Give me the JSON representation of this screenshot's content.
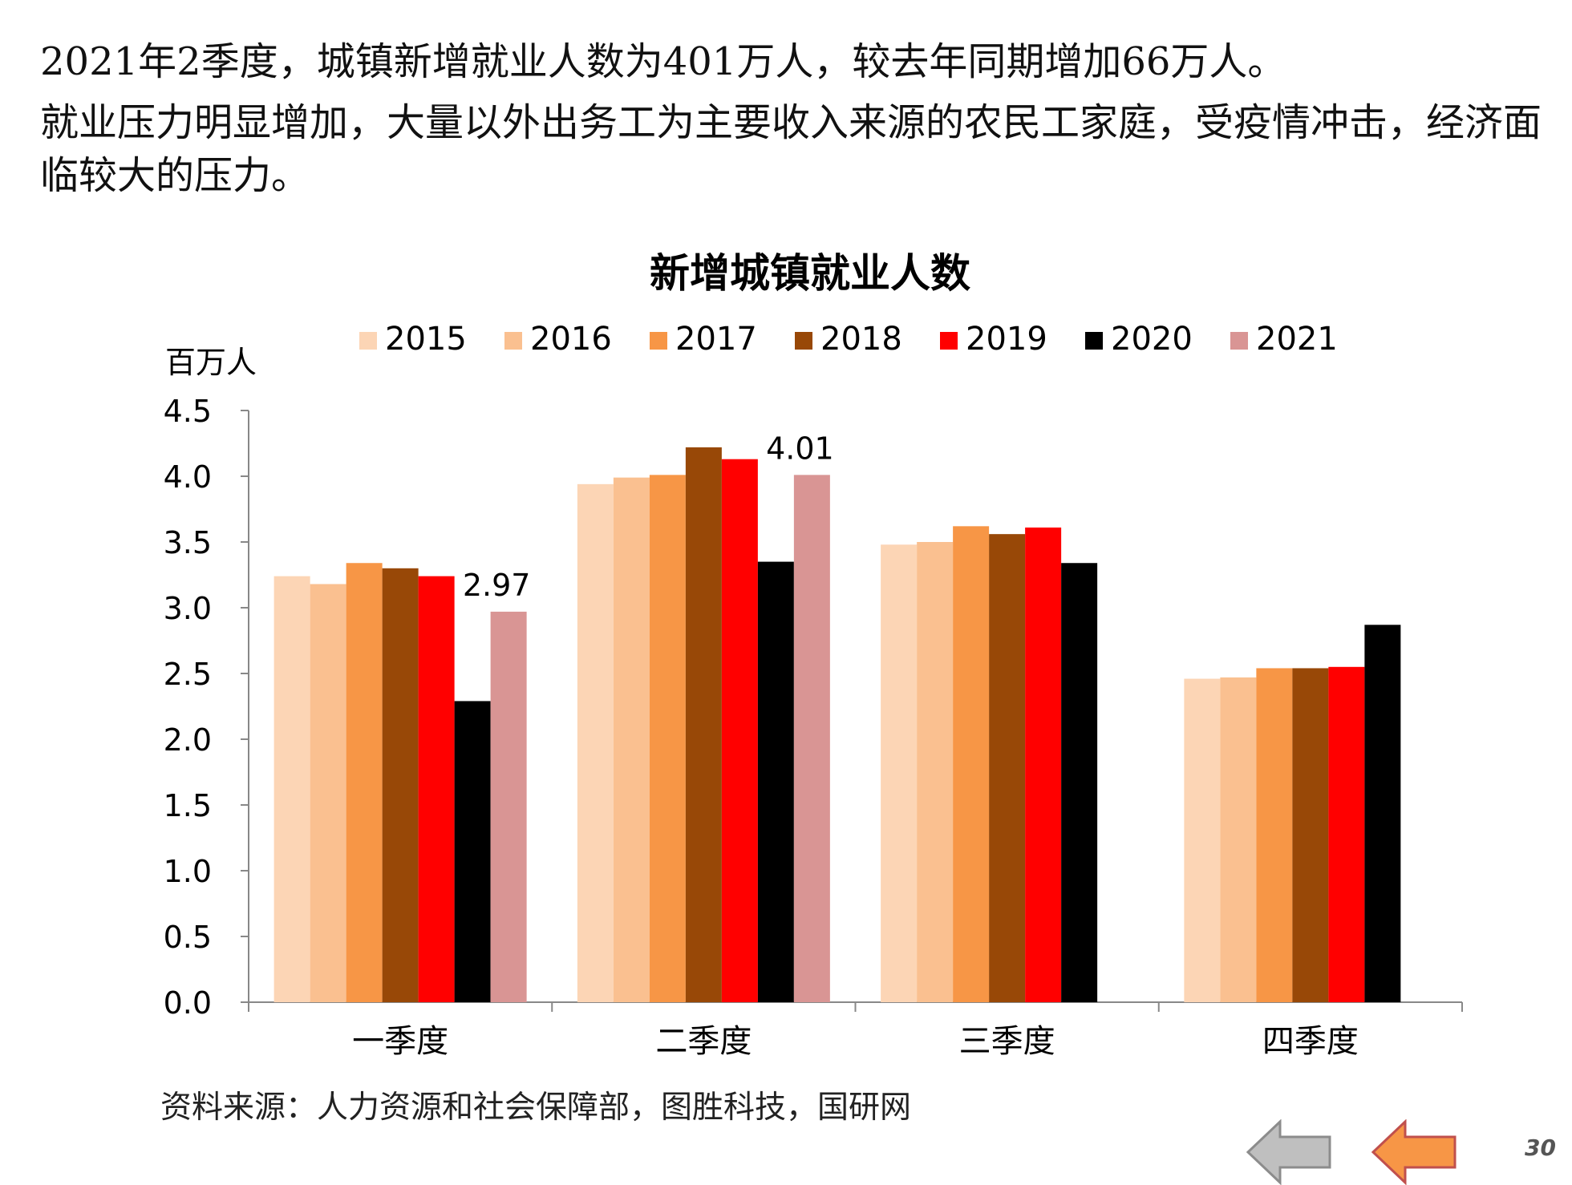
{
  "headline": {
    "line1": "2021年2季度，城镇新增就业人数为401万人，较去年同期增加66万人。",
    "line2": "就业压力明显增加，大量以外出务工为主要收入来源的农民工家庭，受疫情冲击，经济面临较大的压力。"
  },
  "chart_data": {
    "type": "bar",
    "title": "新增城镇就业人数",
    "ylabel": "百万人",
    "xlabel": "",
    "ylim": [
      0,
      4.5
    ],
    "yticks": [
      "0.0",
      "0.5",
      "1.0",
      "1.5",
      "2.0",
      "2.5",
      "3.0",
      "3.5",
      "4.0",
      "4.5"
    ],
    "categories": [
      "一季度",
      "二季度",
      "三季度",
      "四季度"
    ],
    "legend_position": "top",
    "grid": false,
    "series": [
      {
        "name": "2015",
        "color": "#FCD5B5",
        "values": [
          3.24,
          3.94,
          3.48,
          2.46
        ]
      },
      {
        "name": "2016",
        "color": "#FAC090",
        "values": [
          3.18,
          3.99,
          3.5,
          2.47
        ]
      },
      {
        "name": "2017",
        "color": "#F79646",
        "values": [
          3.34,
          4.01,
          3.62,
          2.54
        ]
      },
      {
        "name": "2018",
        "color": "#984807",
        "values": [
          3.3,
          4.22,
          3.56,
          2.54
        ]
      },
      {
        "name": "2019",
        "color": "#FF0000",
        "values": [
          3.24,
          4.13,
          3.61,
          2.55
        ]
      },
      {
        "name": "2020",
        "color": "#000000",
        "values": [
          2.29,
          3.35,
          3.34,
          2.87
        ]
      },
      {
        "name": "2021",
        "color": "#D99594",
        "values": [
          2.97,
          4.01,
          null,
          null
        ]
      }
    ],
    "annotations": [
      {
        "text": "2.97",
        "series": "2021",
        "category": "一季度"
      },
      {
        "text": "4.01",
        "series": "2021",
        "category": "二季度"
      }
    ]
  },
  "source": "资料来源：人力资源和社会保障部，图胜科技，国研网",
  "page_number": "30",
  "nav": {
    "prev_icon": "left-arrow-icon",
    "prev_color": "#BFBFBF",
    "next_icon": "left-arrow-icon",
    "next_color": "#F79646"
  }
}
